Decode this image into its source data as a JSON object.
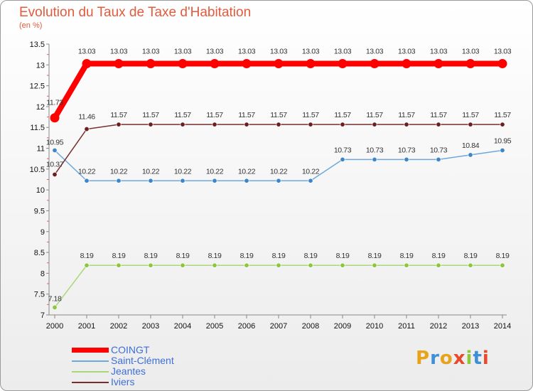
{
  "header": {
    "title": "Evolution du Taux de Taxe d'Habitation",
    "unit": "(en %)"
  },
  "logo": {
    "letters": [
      "P",
      "r",
      "o",
      "x",
      "i",
      "t",
      "i"
    ],
    "colors": [
      "#e8a31a",
      "#3d8fd6",
      "#e8a31a",
      "#e84a2a",
      "#8dc63f",
      "#3d8fd6",
      "#e84a2a"
    ]
  },
  "chart_data": {
    "type": "line",
    "title": "Evolution du Taux de Taxe d'Habitation",
    "ylabel": "(en %)",
    "xlabel": "",
    "ylim": [
      7,
      13.5
    ],
    "yticks": [
      "7",
      "7.5",
      "8",
      "8.5",
      "9",
      "9.5",
      "10",
      "10.5",
      "11",
      "11.5",
      "12",
      "12.5",
      "13",
      "13.5"
    ],
    "x": [
      "2000",
      "2001",
      "2002",
      "2003",
      "2004",
      "2005",
      "2006",
      "2007",
      "2008",
      "2009",
      "2010",
      "2011",
      "2012",
      "2013",
      "2014"
    ],
    "series": [
      {
        "name": "COINGT",
        "color": "#ff0000",
        "marker": "#ff0000",
        "values": [
          11.73,
          13.03,
          13.03,
          13.03,
          13.03,
          13.03,
          13.03,
          13.03,
          13.03,
          13.03,
          13.03,
          13.03,
          13.03,
          13.03,
          13.03
        ],
        "labels": [
          "11.73",
          "13.03",
          "13.03",
          "13.03",
          "13.03",
          "13.03",
          "13.03",
          "13.03",
          "13.03",
          "13.03",
          "13.03",
          "13.03",
          "13.03",
          "13.03",
          "13.03"
        ]
      },
      {
        "name": "Saint-Clément",
        "color": "#6fa8dc",
        "marker": "#3d85c6",
        "values": [
          10.95,
          10.22,
          10.22,
          10.22,
          10.22,
          10.22,
          10.22,
          10.22,
          10.22,
          10.73,
          10.73,
          10.73,
          10.73,
          10.84,
          10.95
        ],
        "labels": [
          "10.95",
          "10.22",
          "10.22",
          "10.22",
          "10.22",
          "10.22",
          "10.22",
          "10.22",
          "10.22",
          "10.73",
          "10.73",
          "10.73",
          "10.73",
          "10.84",
          "10.95"
        ]
      },
      {
        "name": "Jeantes",
        "color": "#a8d878",
        "marker": "#8cc63f",
        "values": [
          7.18,
          8.19,
          8.19,
          8.19,
          8.19,
          8.19,
          8.19,
          8.19,
          8.19,
          8.19,
          8.19,
          8.19,
          8.19,
          8.19,
          8.19
        ],
        "labels": [
          "7.18",
          "8.19",
          "8.19",
          "8.19",
          "8.19",
          "8.19",
          "8.19",
          "8.19",
          "8.19",
          "8.19",
          "8.19",
          "8.19",
          "8.19",
          "8.19",
          "8.19"
        ]
      },
      {
        "name": "Iviers",
        "color": "#7a2e2e",
        "marker": "#6b1f1f",
        "values": [
          10.37,
          11.46,
          11.57,
          11.57,
          11.57,
          11.57,
          11.57,
          11.57,
          11.57,
          11.57,
          11.57,
          11.57,
          11.57,
          11.57,
          11.57
        ],
        "labels": [
          "10.37",
          "11.46",
          "11.57",
          "11.57",
          "11.57",
          "11.57",
          "11.57",
          "11.57",
          "11.57",
          "11.57",
          "11.57",
          "11.57",
          "11.57",
          "11.57",
          "11.57"
        ]
      }
    ]
  }
}
